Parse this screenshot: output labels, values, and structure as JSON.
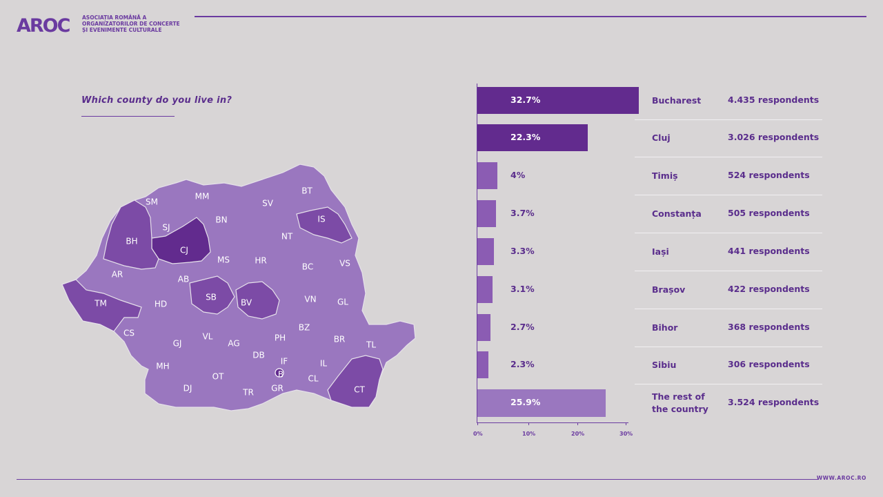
{
  "header": {
    "logo": "AROC",
    "org_line1": "ASOCIAȚIA ROMÂNĂ A",
    "org_line2": "ORGANIZATORILOR DE CONCERTE",
    "org_line3": "ȘI EVENIMENTE CULTURALE"
  },
  "question": "Which county do you live in?",
  "footer": {
    "url": "WWW.AROC.RO"
  },
  "colors": {
    "dark": "#622b8e",
    "medium": "#7c4ba6",
    "light": "#9a77bf",
    "bar_small": "#8b5cb3"
  },
  "map": {
    "highlighted": {
      "CJ": "dark",
      "BH": "medium",
      "TM": "medium",
      "IS": "medium",
      "SB": "medium",
      "BV": "medium",
      "CT": "medium"
    },
    "labels": [
      "SM",
      "MM",
      "BT",
      "SV",
      "SJ",
      "BN",
      "IS",
      "BH",
      "CJ",
      "NT",
      "MS",
      "HR",
      "BC",
      "VS",
      "AR",
      "AB",
      "TM",
      "SB",
      "BV",
      "VN",
      "GL",
      "HD",
      "CS",
      "GJ",
      "VL",
      "AG",
      "PH",
      "BZ",
      "BR",
      "TL",
      "DB",
      "IF",
      "B",
      "IL",
      "MH",
      "OT",
      "CL",
      "DJ",
      "TR",
      "GR",
      "CT"
    ]
  },
  "chart_data": {
    "type": "bar",
    "orientation": "horizontal",
    "categories": [
      "Bucharest",
      "Cluj",
      "Timiș",
      "Constanța",
      "Iași",
      "Brașov",
      "Bihor",
      "Sibiu",
      "The rest of the country"
    ],
    "values": [
      32.7,
      22.3,
      4,
      3.7,
      3.3,
      3.1,
      2.7,
      2.3,
      25.9
    ],
    "value_labels": [
      "32.7%",
      "22.3%",
      "4%",
      "3.7%",
      "3.3%",
      "3.1%",
      "2.7%",
      "2.3%",
      "25.9%"
    ],
    "respondents": [
      "4.435 respondents",
      "3.026 respondents",
      "524 respondents",
      "505 respondents",
      "441 respondents",
      "422 respondents",
      "368 respondents",
      "306 respondents",
      "3.524 respondents"
    ],
    "x_ticks": [
      "0%",
      "10%",
      "20%",
      "30%"
    ],
    "xlim": [
      0,
      30
    ],
    "title": "Which county do you live in?"
  }
}
